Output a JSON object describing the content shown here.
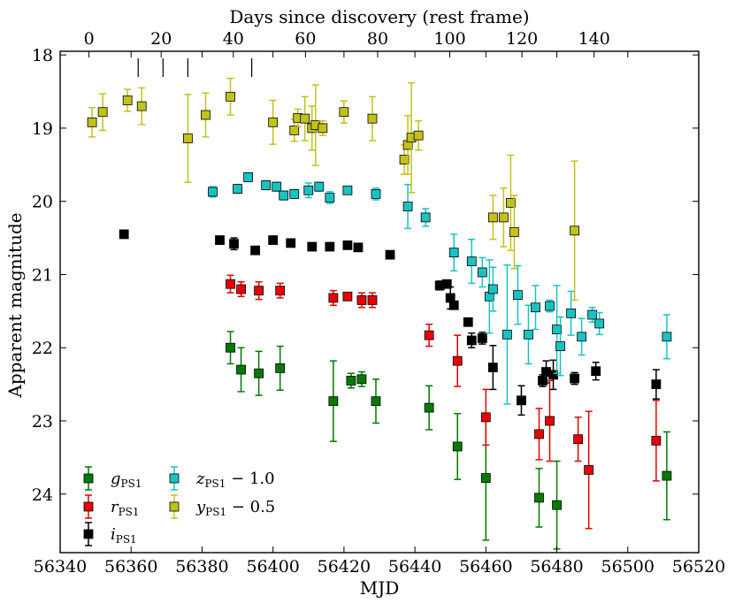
{
  "chart_data": {
    "type": "scatter",
    "xlabel": "MJD",
    "ylabel": "Apparent magnitude",
    "top_xlabel": "Days since discovery (rest frame)",
    "xlim": [
      56340,
      56520
    ],
    "ylim": [
      24.8,
      17.95
    ],
    "top_xlim": [
      -8.0,
      169.0
    ],
    "x_ticks": [
      "56340",
      "56360",
      "56380",
      "56400",
      "56420",
      "56440",
      "56460",
      "56480",
      "56500",
      "56520"
    ],
    "y_ticks": [
      "18",
      "19",
      "20",
      "21",
      "22",
      "23",
      "24"
    ],
    "top_ticks": [
      "0",
      "20",
      "40",
      "60",
      "80",
      "100",
      "120",
      "140"
    ],
    "discovery_marker_mjd": [
      56362,
      56369,
      56376,
      56394
    ],
    "legend_position": "lower-left",
    "series": [
      {
        "name": "g_PS1",
        "label_main": "g",
        "label_sub": "PS1",
        "label_suffix": "",
        "color": "#007a00",
        "points": [
          {
            "x": 56388,
            "y": 22.0,
            "err": 0.22
          },
          {
            "x": 56391,
            "y": 22.3,
            "err": 0.3
          },
          {
            "x": 56396,
            "y": 22.35,
            "err": 0.3
          },
          {
            "x": 56402,
            "y": 22.28,
            "err": 0.3
          },
          {
            "x": 56417,
            "y": 22.73,
            "err": 0.55
          },
          {
            "x": 56422,
            "y": 22.45,
            "err": 0.1
          },
          {
            "x": 56425,
            "y": 22.43,
            "err": 0.1
          },
          {
            "x": 56429,
            "y": 22.73,
            "err": 0.3
          },
          {
            "x": 56444,
            "y": 22.82,
            "err": 0.3
          },
          {
            "x": 56452,
            "y": 23.35,
            "err": 0.45
          },
          {
            "x": 56460,
            "y": 23.78,
            "err": 0.85
          },
          {
            "x": 56475,
            "y": 24.05,
            "err": 0.4
          },
          {
            "x": 56480,
            "y": 24.15,
            "err": 0.6
          },
          {
            "x": 56511,
            "y": 23.75,
            "err": 0.6
          }
        ]
      },
      {
        "name": "r_PS1",
        "label_main": "r",
        "label_sub": "PS1",
        "label_suffix": "",
        "color": "#e80000",
        "points": [
          {
            "x": 56388,
            "y": 21.13,
            "err": 0.12
          },
          {
            "x": 56391,
            "y": 21.2,
            "err": 0.1
          },
          {
            "x": 56396,
            "y": 21.22,
            "err": 0.12
          },
          {
            "x": 56402,
            "y": 21.22,
            "err": 0.1
          },
          {
            "x": 56417,
            "y": 21.32,
            "err": 0.1
          },
          {
            "x": 56421,
            "y": 21.3,
            "err": 0.05
          },
          {
            "x": 56425,
            "y": 21.35,
            "err": 0.1
          },
          {
            "x": 56428,
            "y": 21.35,
            "err": 0.1
          },
          {
            "x": 56444,
            "y": 21.83,
            "err": 0.15
          },
          {
            "x": 56452,
            "y": 22.18,
            "err": 0.35
          },
          {
            "x": 56460,
            "y": 22.95,
            "err": 0.38
          },
          {
            "x": 56475,
            "y": 23.18,
            "err": 0.35
          },
          {
            "x": 56478,
            "y": 23.0,
            "err": 0.55
          },
          {
            "x": 56486,
            "y": 23.25,
            "err": 0.3
          },
          {
            "x": 56489,
            "y": 23.67,
            "err": 0.8
          },
          {
            "x": 56508,
            "y": 23.27,
            "err": 0.55
          }
        ]
      },
      {
        "name": "i_PS1",
        "label_main": "i",
        "label_sub": "PS1",
        "label_suffix": "",
        "color": "#000000",
        "points": [
          {
            "x": 56358,
            "y": 20.45,
            "err": 0.0
          },
          {
            "x": 56385,
            "y": 20.53,
            "err": 0.0
          },
          {
            "x": 56389,
            "y": 20.58,
            "err": 0.08
          },
          {
            "x": 56395,
            "y": 20.67,
            "err": 0.0
          },
          {
            "x": 56400,
            "y": 20.53,
            "err": 0.0
          },
          {
            "x": 56405,
            "y": 20.57,
            "err": 0.0
          },
          {
            "x": 56411,
            "y": 20.62,
            "err": 0.05
          },
          {
            "x": 56416,
            "y": 20.62,
            "err": 0.0
          },
          {
            "x": 56421,
            "y": 20.6,
            "err": 0.0
          },
          {
            "x": 56424,
            "y": 20.63,
            "err": 0.0
          },
          {
            "x": 56433,
            "y": 20.73,
            "err": 0.0
          },
          {
            "x": 56447,
            "y": 21.15,
            "err": 0.06
          },
          {
            "x": 56449,
            "y": 21.13,
            "err": 0.05
          },
          {
            "x": 56450,
            "y": 21.32,
            "err": 0.15
          },
          {
            "x": 56451,
            "y": 21.42,
            "err": 0.0
          },
          {
            "x": 56455,
            "y": 21.65,
            "err": 0.05
          },
          {
            "x": 56456,
            "y": 21.9,
            "err": 0.1
          },
          {
            "x": 56459,
            "y": 21.87,
            "err": 0.08
          },
          {
            "x": 56462,
            "y": 22.27,
            "err": 0.3
          },
          {
            "x": 56470,
            "y": 22.72,
            "err": 0.2
          },
          {
            "x": 56476,
            "y": 22.45,
            "err": 0.08
          },
          {
            "x": 56477,
            "y": 22.33,
            "err": 0.15
          },
          {
            "x": 56479,
            "y": 22.37,
            "err": 0.2
          },
          {
            "x": 56485,
            "y": 22.42,
            "err": 0.08
          },
          {
            "x": 56491,
            "y": 22.32,
            "err": 0.12
          },
          {
            "x": 56508,
            "y": 22.5,
            "err": 0.2
          }
        ]
      },
      {
        "name": "z_PS1 - 1.0",
        "label_main": "z",
        "label_sub": "PS1",
        "label_suffix": " − 1.0",
        "color": "#1ac2c2",
        "points": [
          {
            "x": 56383,
            "y": 19.87,
            "err": 0.07
          },
          {
            "x": 56390,
            "y": 19.83,
            "err": 0.06
          },
          {
            "x": 56393,
            "y": 19.67,
            "err": 0.06
          },
          {
            "x": 56398,
            "y": 19.78,
            "err": 0.06
          },
          {
            "x": 56401,
            "y": 19.8,
            "err": 0.06
          },
          {
            "x": 56403,
            "y": 19.92,
            "err": 0.06
          },
          {
            "x": 56406,
            "y": 19.9,
            "err": 0.06
          },
          {
            "x": 56410,
            "y": 19.85,
            "err": 0.1
          },
          {
            "x": 56413,
            "y": 19.8,
            "err": 0.06
          },
          {
            "x": 56416,
            "y": 19.95,
            "err": 0.08
          },
          {
            "x": 56421,
            "y": 19.85,
            "err": 0.05
          },
          {
            "x": 56429,
            "y": 19.9,
            "err": 0.08
          },
          {
            "x": 56438,
            "y": 20.07,
            "err": 0.3
          },
          {
            "x": 56443,
            "y": 20.22,
            "err": 0.12
          },
          {
            "x": 56451,
            "y": 20.7,
            "err": 0.25
          },
          {
            "x": 56456,
            "y": 20.82,
            "err": 0.3
          },
          {
            "x": 56459,
            "y": 20.97,
            "err": 0.2
          },
          {
            "x": 56461,
            "y": 21.3,
            "err": 0.5
          },
          {
            "x": 56462,
            "y": 21.2,
            "err": 0.3
          },
          {
            "x": 56466,
            "y": 21.82,
            "err": 0.95
          },
          {
            "x": 56469,
            "y": 21.28,
            "err": 0.4
          },
          {
            "x": 56472,
            "y": 21.82,
            "err": 0.4
          },
          {
            "x": 56474,
            "y": 21.45,
            "err": 0.3
          },
          {
            "x": 56478,
            "y": 21.43,
            "err": 0.08
          },
          {
            "x": 56480,
            "y": 21.75,
            "err": 0.6
          },
          {
            "x": 56481,
            "y": 21.98,
            "err": 0.4
          },
          {
            "x": 56484,
            "y": 21.53,
            "err": 0.3
          },
          {
            "x": 56487,
            "y": 21.85,
            "err": 0.25
          },
          {
            "x": 56490,
            "y": 21.55,
            "err": 0.1
          },
          {
            "x": 56492,
            "y": 21.67,
            "err": 0.15
          },
          {
            "x": 56511,
            "y": 21.85,
            "err": 0.3
          }
        ]
      },
      {
        "name": "y_PS1 - 0.5",
        "label_main": "y",
        "label_sub": "PS1",
        "label_suffix": " − 0.5",
        "color": "#c2c21a",
        "points": [
          {
            "x": 56349,
            "y": 18.92,
            "err": 0.2
          },
          {
            "x": 56352,
            "y": 18.78,
            "err": 0.25
          },
          {
            "x": 56359,
            "y": 18.62,
            "err": 0.15
          },
          {
            "x": 56363,
            "y": 18.7,
            "err": 0.25
          },
          {
            "x": 56376,
            "y": 19.14,
            "err": 0.6
          },
          {
            "x": 56381,
            "y": 18.82,
            "err": 0.3
          },
          {
            "x": 56388,
            "y": 18.57,
            "err": 0.25
          },
          {
            "x": 56400,
            "y": 18.92,
            "err": 0.3
          },
          {
            "x": 56406,
            "y": 19.03,
            "err": 0.15
          },
          {
            "x": 56407,
            "y": 18.86,
            "err": 0.12
          },
          {
            "x": 56409,
            "y": 18.87,
            "err": 0.3
          },
          {
            "x": 56411,
            "y": 19.0,
            "err": 0.3
          },
          {
            "x": 56412,
            "y": 18.96,
            "err": 0.55
          },
          {
            "x": 56414,
            "y": 19.0,
            "err": 0.1
          },
          {
            "x": 56420,
            "y": 18.78,
            "err": 0.15
          },
          {
            "x": 56428,
            "y": 18.87,
            "err": 0.3
          },
          {
            "x": 56437,
            "y": 19.43,
            "err": 0.2
          },
          {
            "x": 56438,
            "y": 19.23,
            "err": 0.4
          },
          {
            "x": 56439,
            "y": 19.13,
            "err": 0.75
          },
          {
            "x": 56441,
            "y": 19.1,
            "err": 0.2
          },
          {
            "x": 56462,
            "y": 20.22,
            "err": 0.3
          },
          {
            "x": 56465,
            "y": 20.22,
            "err": 0.4
          },
          {
            "x": 56467,
            "y": 20.02,
            "err": 0.65
          },
          {
            "x": 56468,
            "y": 20.42,
            "err": 0.5
          },
          {
            "x": 56485,
            "y": 20.4,
            "err": 0.95
          }
        ]
      }
    ]
  }
}
